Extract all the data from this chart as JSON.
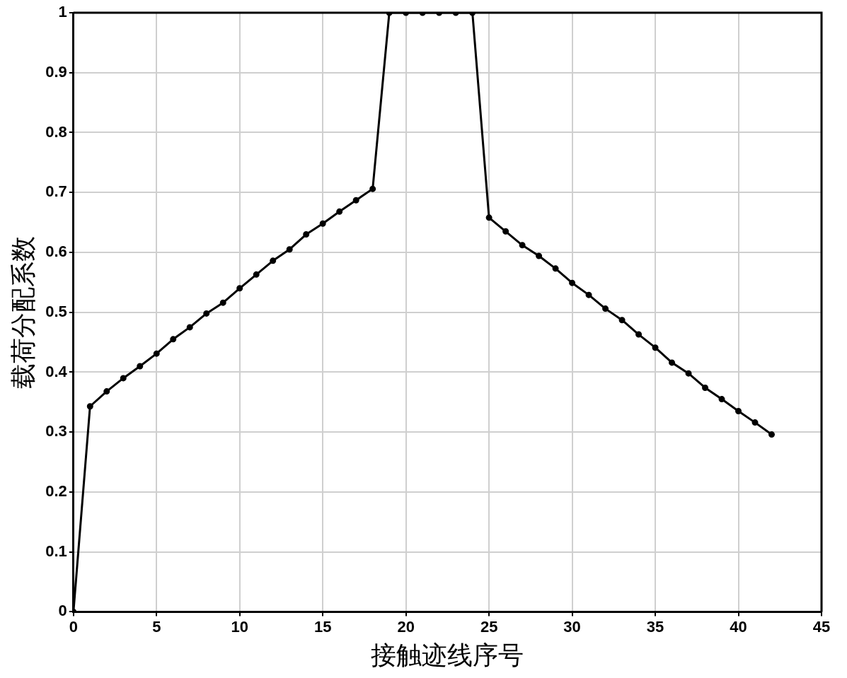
{
  "chart_data": {
    "type": "line",
    "xlabel": "接触迹线序号",
    "ylabel": "载荷分配系数",
    "x": [
      0,
      1,
      2,
      3,
      4,
      5,
      6,
      7,
      8,
      9,
      10,
      11,
      12,
      13,
      14,
      15,
      16,
      17,
      18,
      19,
      20,
      21,
      22,
      23,
      24,
      25,
      26,
      27,
      28,
      29,
      30,
      31,
      32,
      33,
      34,
      35,
      36,
      37,
      38,
      39,
      40,
      41,
      42
    ],
    "series": [
      {
        "color": "#000000",
        "values": [
          0,
          0.343,
          0.368,
          0.39,
          0.41,
          0.431,
          0.455,
          0.475,
          0.498,
          0.516,
          0.54,
          0.563,
          0.586,
          0.605,
          0.63,
          0.648,
          0.668,
          0.687,
          0.706,
          1,
          1,
          1,
          1,
          1,
          1,
          0.658,
          0.635,
          0.612,
          0.594,
          0.573,
          0.549,
          0.529,
          0.506,
          0.487,
          0.463,
          0.441,
          0.416,
          0.398,
          0.374,
          0.355,
          0.335,
          0.316,
          0.296
        ]
      }
    ],
    "xlim": [
      0,
      45
    ],
    "xticks": [
      0,
      5,
      10,
      15,
      20,
      25,
      30,
      35,
      40,
      45
    ],
    "ylim": [
      0,
      1
    ],
    "yticks": [
      0,
      0.1,
      0.2,
      0.3,
      0.4,
      0.5,
      0.6,
      0.7,
      0.8,
      0.9,
      1
    ],
    "grid": true,
    "marker": "circle",
    "line_style": "solid",
    "legend": false
  }
}
